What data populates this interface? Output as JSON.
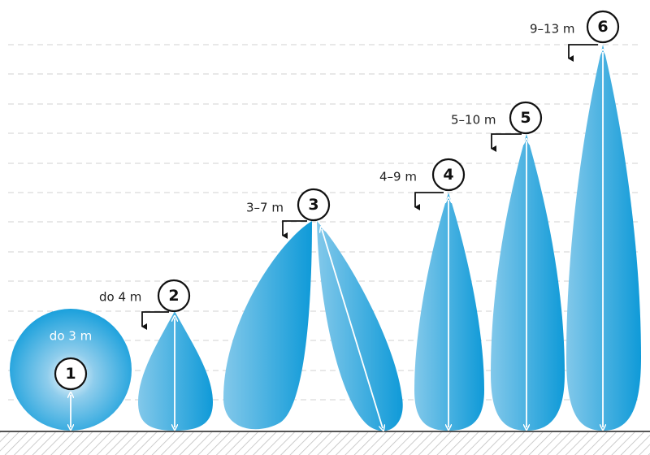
{
  "markers": [
    {
      "label": "do 3 m",
      "number": "1"
    },
    {
      "label": "do 4 m",
      "number": "2"
    },
    {
      "label": "3–7 m",
      "number": "3"
    },
    {
      "label": "4–9 m",
      "number": "4"
    },
    {
      "label": "5–10 m",
      "number": "5"
    },
    {
      "label": "9–13 m",
      "number": "6"
    }
  ]
}
